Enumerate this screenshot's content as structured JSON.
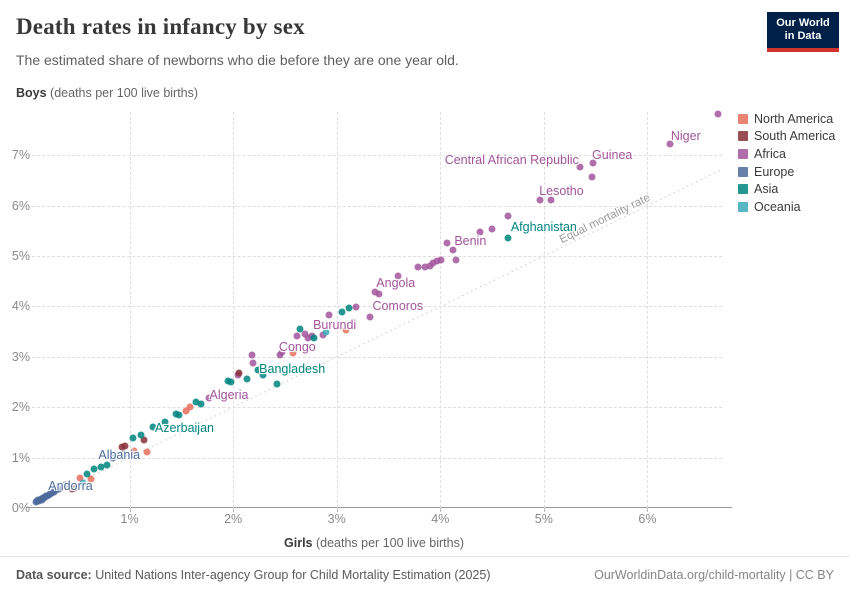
{
  "header": {
    "title": "Death rates in infancy by sex",
    "subtitle": "The estimated share of newborns who die before they are one year old.",
    "logo": {
      "line1": "Our World",
      "line2": "in Data",
      "bg_color": "#002147",
      "accent_color": "#d0342c"
    }
  },
  "chart_data": {
    "type": "scatter",
    "title": "Death rates in infancy by sex",
    "xlabel": "Girls (deaths per 100 live births)",
    "ylabel": "Boys (deaths per 100 live births)",
    "xlabel_bold": "Girls",
    "xlabel_rest": " (deaths per 100 live births)",
    "ylabel_bold": "Boys",
    "ylabel_rest": " (deaths per 100 live births)",
    "x_min": 0,
    "x_max": 6.72,
    "y_min": 0,
    "y_max": 7.86,
    "x_ticks": [
      1,
      2,
      3,
      4,
      5,
      6
    ],
    "y_ticks": [
      0,
      1,
      2,
      3,
      4,
      5,
      6,
      7
    ],
    "tick_suffix": "%",
    "grid": true,
    "legend_position": "right",
    "diagonal_label": "Equal mortality rate",
    "diagonal_label_pos": {
      "x": 5.59,
      "y": 5.74,
      "rotation_deg": -26
    },
    "continent_colors": {
      "northAmerica": "#e56e5a",
      "southAmerica": "#883039",
      "africa": "#a2559c",
      "europe": "#4c6a9c",
      "asia": "#00847e",
      "oceania": "#38aaba"
    },
    "legend": [
      {
        "key": "northAmerica",
        "label": "North America"
      },
      {
        "key": "southAmerica",
        "label": "South America"
      },
      {
        "key": "africa",
        "label": "Africa"
      },
      {
        "key": "europe",
        "label": "Europe"
      },
      {
        "key": "asia",
        "label": "Asia"
      },
      {
        "key": "oceania",
        "label": "Oceania"
      }
    ],
    "points": [
      [
        0.1,
        0.12,
        "europe"
      ],
      [
        0.11,
        0.14,
        "europe"
      ],
      [
        0.12,
        0.15,
        "europe"
      ],
      [
        0.13,
        0.14,
        "europe"
      ],
      [
        0.14,
        0.17,
        "europe"
      ],
      [
        0.15,
        0.16,
        "europe"
      ],
      [
        0.16,
        0.19,
        "europe"
      ],
      [
        0.17,
        0.2,
        "europe"
      ],
      [
        0.18,
        0.21,
        "europe"
      ],
      [
        0.19,
        0.23,
        "europe"
      ],
      [
        0.2,
        0.24,
        "europe"
      ],
      [
        0.22,
        0.26,
        "europe"
      ],
      [
        0.23,
        0.28,
        "europe"
      ],
      [
        0.25,
        0.3,
        "europe"
      ],
      [
        0.27,
        0.32,
        "europe"
      ],
      [
        0.29,
        0.35,
        "europe"
      ],
      [
        0.32,
        0.38,
        "europe"
      ],
      [
        0.35,
        0.42,
        "europe"
      ],
      [
        0.38,
        0.45,
        "europe"
      ],
      [
        0.44,
        0.37,
        "southAmerica"
      ],
      [
        0.47,
        0.4,
        "southAmerica"
      ],
      [
        0.52,
        0.59,
        "northAmerica"
      ],
      [
        0.63,
        0.57,
        "northAmerica"
      ],
      [
        0.55,
        0.5,
        "oceania"
      ],
      [
        0.59,
        0.67,
        "asia"
      ],
      [
        0.66,
        0.77,
        "asia"
      ],
      [
        0.72,
        0.81,
        "asia"
      ],
      [
        0.78,
        0.85,
        "asia"
      ],
      [
        0.84,
        1.0,
        "europe"
      ],
      [
        0.95,
        1.08,
        "europe"
      ],
      [
        0.93,
        1.21,
        "southAmerica"
      ],
      [
        0.96,
        1.24,
        "southAmerica"
      ],
      [
        1.14,
        1.34,
        "southAmerica"
      ],
      [
        1.04,
        1.14,
        "northAmerica"
      ],
      [
        1.17,
        1.11,
        "northAmerica"
      ],
      [
        1.03,
        1.38,
        "asia"
      ],
      [
        1.11,
        1.44,
        "asia"
      ],
      [
        1.23,
        1.6,
        "asia"
      ],
      [
        1.34,
        1.71,
        "asia"
      ],
      [
        1.45,
        1.87,
        "asia"
      ],
      [
        1.48,
        1.84,
        "asia"
      ],
      [
        1.64,
        2.1,
        "asia"
      ],
      [
        1.69,
        2.07,
        "asia"
      ],
      [
        1.54,
        1.93,
        "northAmerica"
      ],
      [
        1.58,
        2.0,
        "northAmerica"
      ],
      [
        1.77,
        2.18,
        "africa"
      ],
      [
        1.95,
        2.53,
        "asia"
      ],
      [
        1.98,
        2.5,
        "asia"
      ],
      [
        2.13,
        2.57,
        "asia"
      ],
      [
        2.24,
        2.73,
        "asia"
      ],
      [
        2.29,
        2.64,
        "asia"
      ],
      [
        2.42,
        2.47,
        "asia"
      ],
      [
        2.05,
        2.63,
        "africa"
      ],
      [
        2.19,
        2.87,
        "africa"
      ],
      [
        2.18,
        3.03,
        "africa"
      ],
      [
        2.47,
        3.1,
        "africa"
      ],
      [
        2.45,
        3.03,
        "africa"
      ],
      [
        2.06,
        2.68,
        "southAmerica"
      ],
      [
        2.58,
        3.07,
        "northAmerica"
      ],
      [
        2.62,
        3.41,
        "africa"
      ],
      [
        2.69,
        3.45,
        "africa"
      ],
      [
        2.72,
        3.37,
        "africa"
      ],
      [
        2.76,
        3.41,
        "africa"
      ],
      [
        2.87,
        3.44,
        "africa"
      ],
      [
        2.93,
        3.83,
        "africa"
      ],
      [
        2.65,
        3.55,
        "asia"
      ],
      [
        2.78,
        3.37,
        "asia"
      ],
      [
        3.05,
        3.9,
        "asia"
      ],
      [
        3.12,
        3.96,
        "asia"
      ],
      [
        2.9,
        3.5,
        "oceania"
      ],
      [
        3.09,
        3.53,
        "northAmerica"
      ],
      [
        3.19,
        3.99,
        "africa"
      ],
      [
        3.32,
        3.79,
        "africa"
      ],
      [
        3.37,
        4.29,
        "africa"
      ],
      [
        3.41,
        4.25,
        "africa"
      ],
      [
        3.59,
        4.6,
        "africa"
      ],
      [
        3.78,
        4.78,
        "africa"
      ],
      [
        3.85,
        4.79,
        "africa"
      ],
      [
        3.9,
        4.81,
        "africa"
      ],
      [
        3.93,
        4.86,
        "africa"
      ],
      [
        3.97,
        4.9,
        "africa"
      ],
      [
        4.01,
        4.93,
        "africa"
      ],
      [
        4.06,
        5.26,
        "africa"
      ],
      [
        4.12,
        5.12,
        "africa"
      ],
      [
        4.15,
        4.93,
        "africa"
      ],
      [
        4.38,
        5.48,
        "africa"
      ],
      [
        4.5,
        5.53,
        "africa"
      ],
      [
        4.65,
        5.8,
        "africa"
      ],
      [
        4.96,
        6.11,
        "africa"
      ],
      [
        5.07,
        6.12,
        "africa"
      ],
      [
        4.65,
        5.36,
        "asia"
      ],
      [
        5.35,
        6.76,
        "africa"
      ],
      [
        5.46,
        6.57,
        "africa"
      ],
      [
        5.47,
        6.84,
        "africa"
      ],
      [
        6.22,
        7.23,
        "africa"
      ],
      [
        6.68,
        7.82,
        "africa"
      ]
    ],
    "point_labels": [
      {
        "text": "Andorra",
        "x": 0.43,
        "y": 0.44,
        "continent": "europe"
      },
      {
        "text": "Albania",
        "x": 0.9,
        "y": 1.05,
        "continent": "europe"
      },
      {
        "text": "Azerbaijan",
        "x": 1.53,
        "y": 1.59,
        "continent": "asia"
      },
      {
        "text": "Algeria",
        "x": 1.96,
        "y": 2.25,
        "continent": "africa"
      },
      {
        "text": "Bangladesh",
        "x": 2.57,
        "y": 2.76,
        "continent": "asia"
      },
      {
        "text": "Congo",
        "x": 2.62,
        "y": 3.2,
        "continent": "africa"
      },
      {
        "text": "Burundi",
        "x": 2.98,
        "y": 3.64,
        "continent": "africa"
      },
      {
        "text": "Comoros",
        "x": 3.59,
        "y": 4.0,
        "continent": "africa"
      },
      {
        "text": "Angola",
        "x": 3.57,
        "y": 4.47,
        "continent": "africa"
      },
      {
        "text": "Benin",
        "x": 4.29,
        "y": 5.29,
        "continent": "africa"
      },
      {
        "text": "Afghanistan",
        "x": 5.0,
        "y": 5.57,
        "continent": "asia"
      },
      {
        "text": "Lesotho",
        "x": 5.17,
        "y": 6.3,
        "continent": "africa"
      },
      {
        "text": "Central African Republic",
        "x": 4.69,
        "y": 6.9,
        "continent": "africa"
      },
      {
        "text": "Guinea",
        "x": 5.66,
        "y": 7.0,
        "continent": "africa"
      },
      {
        "text": "Niger",
        "x": 6.37,
        "y": 7.38,
        "continent": "africa"
      }
    ]
  },
  "footer": {
    "source_label": "Data source:",
    "source_text": " United Nations Inter-agency Group for Child Mortality Estimation (2025)",
    "link_text": "OurWorldinData.org/child-mortality | CC BY"
  }
}
